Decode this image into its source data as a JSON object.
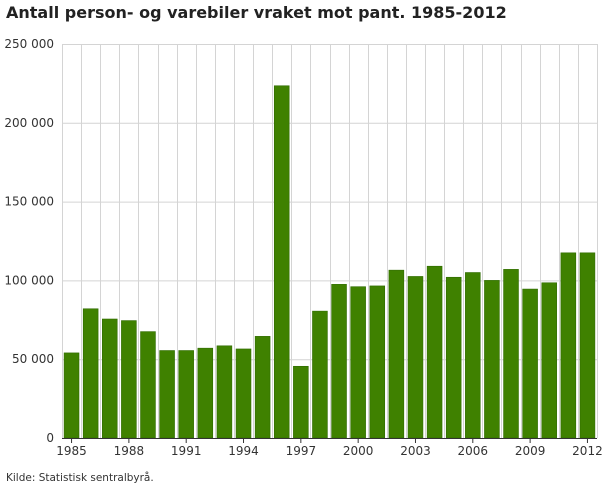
{
  "title": "Antall person- og varebiler vraket mot pant. 1985-2012",
  "source": "Kilde: Statistisk sentralbyrå.",
  "colors": {
    "bar": "#3f8100",
    "bar_edge": "#2f6b00",
    "grid": "#d4d4d4",
    "axis": "#333333"
  },
  "chart_data": {
    "type": "bar",
    "title": "Antall person- og varebiler vraket mot pant. 1985-2012",
    "xlabel": "",
    "ylabel": "",
    "ylim": [
      0,
      250000
    ],
    "grid": true,
    "legend": "none",
    "categories": [
      "1985",
      "1986",
      "1987",
      "1988",
      "1989",
      "1990",
      "1991",
      "1992",
      "1993",
      "1994",
      "1995",
      "1996",
      "1997",
      "1998",
      "1999",
      "2000",
      "2001",
      "2002",
      "2003",
      "2004",
      "2005",
      "2006",
      "2007",
      "2008",
      "2009",
      "2010",
      "2011",
      "2012"
    ],
    "values": [
      54000,
      82000,
      75500,
      74500,
      67500,
      55500,
      55500,
      57000,
      58500,
      56500,
      64500,
      223500,
      45500,
      80500,
      97500,
      96000,
      96500,
      106500,
      102500,
      109000,
      102000,
      105000,
      100000,
      107000,
      94500,
      98500,
      117500,
      117500
    ],
    "x_tick_labels": [
      "1985",
      "1988",
      "1991",
      "1994",
      "1997",
      "2000",
      "2003",
      "2006",
      "2009",
      "2012"
    ],
    "y_tick_values": [
      0,
      50000,
      100000,
      150000,
      200000,
      250000
    ],
    "y_tick_labels": [
      "0",
      "50 000",
      "100 000",
      "150 000",
      "200 000",
      "250 000"
    ]
  }
}
